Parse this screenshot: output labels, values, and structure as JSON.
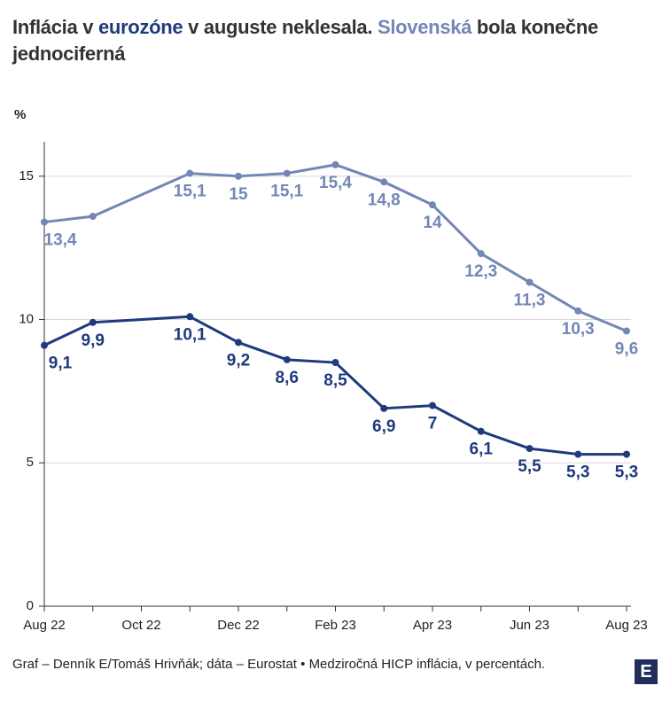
{
  "chart_data": {
    "type": "line",
    "title": [
      "Inflácia v ",
      "eurozóne",
      " v auguste neklesala. ",
      "Slovenská",
      " bola konečne jednociferná"
    ],
    "y_label": "%",
    "categories": [
      "Aug 22",
      null,
      "Oct 22",
      null,
      "Dec 22",
      null,
      "Feb 23",
      null,
      "Apr 23",
      null,
      "Jun 23",
      null,
      "Aug 23"
    ],
    "series": [
      {
        "name": "Slovenská",
        "color": "#7386b6",
        "values": [
          13.4,
          13.6,
          null,
          15.1,
          15,
          15.1,
          15.4,
          14.8,
          14,
          12.3,
          11.3,
          10.3,
          9.6
        ],
        "value_labels": [
          "13,4",
          null,
          null,
          "15,1",
          "15",
          "15,1",
          "15,4",
          "14,8",
          "14",
          "12,3",
          "11,3",
          "10,3",
          "9,6"
        ]
      },
      {
        "name": "eurozóne",
        "color": "#1f3a7d",
        "values": [
          9.1,
          9.9,
          null,
          10.1,
          9.2,
          8.6,
          8.5,
          6.9,
          7,
          6.1,
          5.5,
          5.3,
          5.3
        ],
        "value_labels": [
          "9,1",
          "9,9",
          null,
          "10,1",
          "9,2",
          "8,6",
          "8,5",
          "6,9",
          "7",
          "6,1",
          "5,5",
          "5,3",
          "5,3"
        ]
      }
    ],
    "connect_gaps": true,
    "ylim": [
      0,
      16.2
    ],
    "yticks": [
      0,
      5,
      10,
      15
    ],
    "grid": true,
    "source": "Graf – Denník E/Tomáš Hrivňák; dáta – Eurostat • Medziročná HICP inflácia, v percentách.",
    "logo": "E"
  }
}
